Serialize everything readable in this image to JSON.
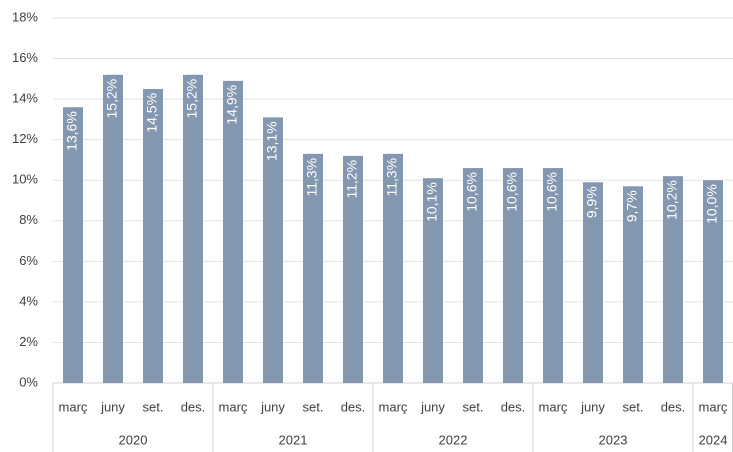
{
  "chart_data": {
    "type": "bar",
    "groups": [
      {
        "label": "2020",
        "categories": [
          "març",
          "juny",
          "set.",
          "des."
        ]
      },
      {
        "label": "2021",
        "categories": [
          "març",
          "juny",
          "set.",
          "des."
        ]
      },
      {
        "label": "2022",
        "categories": [
          "març",
          "juny",
          "set.",
          "des."
        ]
      },
      {
        "label": "2023",
        "categories": [
          "març",
          "juny",
          "set.",
          "des."
        ]
      },
      {
        "label": "2024",
        "categories": [
          "març"
        ]
      }
    ],
    "values": [
      13.6,
      15.2,
      14.5,
      15.2,
      14.9,
      13.1,
      11.3,
      11.2,
      11.3,
      10.1,
      10.6,
      10.6,
      10.6,
      9.9,
      9.7,
      10.2,
      10.0
    ],
    "value_labels": [
      "13,6%",
      "15,2%",
      "14,5%",
      "15,2%",
      "14,9%",
      "13,1%",
      "11,3%",
      "11,2%",
      "11,3%",
      "10,1%",
      "10,6%",
      "10,6%",
      "10,6%",
      "9,9%",
      "9,7%",
      "10,2%",
      "10,0%"
    ],
    "color": "#8497b0",
    "ylim": [
      0,
      18
    ],
    "yticks": [
      {
        "value": 0,
        "label": "0%"
      },
      {
        "value": 2,
        "label": "2%"
      },
      {
        "value": 4,
        "label": "4%"
      },
      {
        "value": 6,
        "label": "6%"
      },
      {
        "value": 8,
        "label": "8%"
      },
      {
        "value": 10,
        "label": "10%"
      },
      {
        "value": 12,
        "label": "12%"
      },
      {
        "value": 14,
        "label": "14%"
      },
      {
        "value": 16,
        "label": "16%"
      },
      {
        "value": 18,
        "label": "18%"
      }
    ],
    "grid": true
  }
}
